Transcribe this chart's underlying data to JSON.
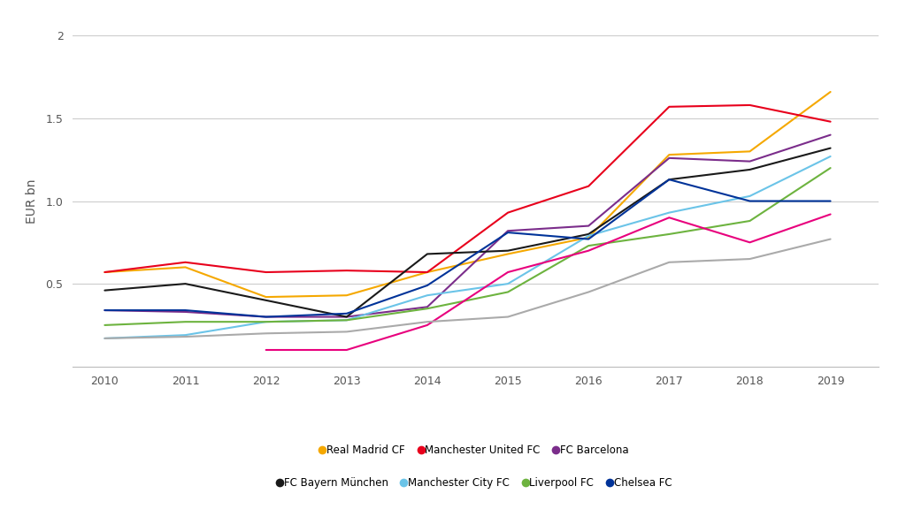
{
  "title": "",
  "ylabel": "EUR bn",
  "years": [
    2010,
    2011,
    2012,
    2013,
    2014,
    2015,
    2016,
    2017,
    2018,
    2019
  ],
  "series": {
    "Real Madrid CF": {
      "color": "#F5A800",
      "values": [
        0.57,
        0.6,
        0.42,
        0.43,
        0.57,
        0.68,
        0.78,
        1.28,
        1.3,
        1.66
      ]
    },
    "Manchester United FC": {
      "color": "#E8001C",
      "values": [
        0.57,
        0.63,
        0.57,
        0.58,
        0.57,
        0.93,
        1.09,
        1.57,
        1.58,
        1.48
      ]
    },
    "FC Barcelona": {
      "color": "#7B2D8B",
      "values": [
        0.34,
        0.33,
        0.3,
        0.3,
        0.36,
        0.82,
        0.85,
        1.26,
        1.24,
        1.4
      ]
    },
    "FC Bayern München": {
      "color": "#1A1A1A",
      "values": [
        0.46,
        0.5,
        0.4,
        0.3,
        0.68,
        0.7,
        0.8,
        1.13,
        1.19,
        1.32
      ]
    },
    "Manchester City FC": {
      "color": "#6BC4E8",
      "values": [
        0.17,
        0.19,
        0.27,
        0.28,
        0.43,
        0.5,
        0.79,
        0.93,
        1.03,
        1.27
      ]
    },
    "Liverpool FC": {
      "color": "#6DB33F",
      "values": [
        0.25,
        0.27,
        0.27,
        0.28,
        0.35,
        0.45,
        0.73,
        0.8,
        0.88,
        1.2
      ]
    },
    "Chelsea FC": {
      "color": "#003399",
      "values": [
        0.34,
        0.34,
        0.3,
        0.32,
        0.49,
        0.81,
        0.77,
        1.13,
        1.0,
        1.0
      ]
    },
    "PSG": {
      "color": "#E8007D",
      "values": [
        null,
        null,
        0.1,
        0.1,
        0.25,
        0.57,
        0.7,
        0.9,
        0.75,
        0.92
      ]
    },
    "Tottenham Hotspur": {
      "color": "#AAAAAA",
      "values": [
        0.17,
        0.18,
        0.2,
        0.21,
        0.27,
        0.3,
        0.45,
        0.63,
        0.65,
        0.77
      ]
    }
  },
  "ylim": [
    0,
    2.0
  ],
  "yticks": [
    0.5,
    1.0,
    1.5,
    2.0
  ],
  "ytick_labels": [
    "0.5",
    "1.0",
    "1.5",
    "2"
  ],
  "background_color": "#FFFFFF",
  "grid_color": "#CCCCCC",
  "legend_row1": [
    [
      "Real Madrid CF",
      "#F5A800"
    ],
    [
      "Manchester United FC",
      "#E8001C"
    ],
    [
      "FC Barcelona",
      "#7B2D8B"
    ]
  ],
  "legend_row2": [
    [
      "FC Bayern München",
      "#1A1A1A"
    ],
    [
      "Manchester City FC",
      "#6BC4E8"
    ],
    [
      "Liverpool FC",
      "#6DB33F"
    ],
    [
      "Chelsea FC",
      "#003399"
    ]
  ]
}
